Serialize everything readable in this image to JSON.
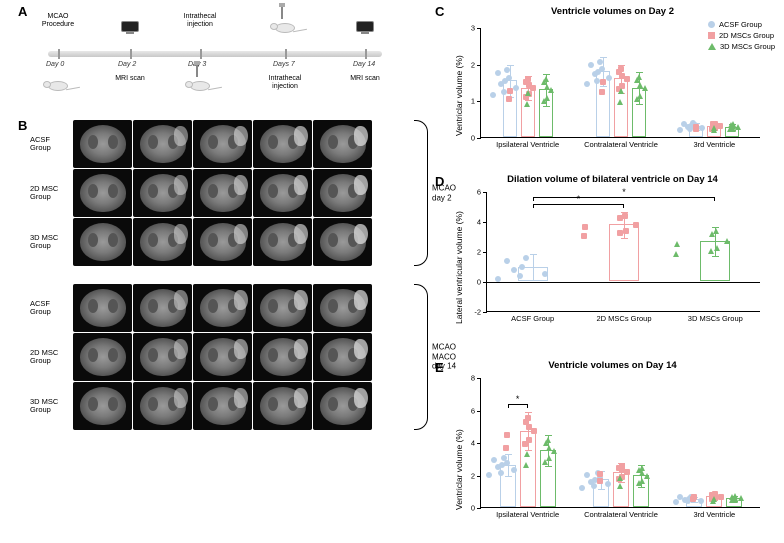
{
  "colors": {
    "acsf": "#b9d0e8",
    "msc2d": "#f1a0a2",
    "msc3d": "#6dbb6a",
    "axis": "#000000",
    "bg": "#ffffff"
  },
  "panelA": {
    "label": "A",
    "events": [
      {
        "day": "Day 0",
        "top": "MCAO\nProcedure",
        "bottom_icon": "rat",
        "x": 28
      },
      {
        "day": "Day 2",
        "top_icon": "monitor",
        "bottom": "MRI scan",
        "x": 100
      },
      {
        "day": "Day 3",
        "top": "Intrathecal\ninjection",
        "bottom_icon": "rat-syringe",
        "x": 170
      },
      {
        "day": "Days 7",
        "top_icon": "rat-syringe",
        "bottom": "Intrathecal\ninjection",
        "x": 255
      },
      {
        "day": "Day 14",
        "top_icon": "monitor",
        "bottom": "MRI scan",
        "x": 335
      }
    ]
  },
  "panelB": {
    "label": "B",
    "blocks": [
      {
        "bracket": "MCAO\nday 2",
        "rows": [
          "ACSF\nGroup",
          "2D MSC\nGroup",
          "3D MSC\nGroup"
        ]
      },
      {
        "bracket": "MCAO\nMACO\nday 14",
        "rows": [
          "ACSF\nGroup",
          "2D MSC\nGroup",
          "3D MSC\nGroup"
        ]
      }
    ],
    "slices_per_row": 5
  },
  "legend_groups": [
    "ACSF Group",
    "2D MSCs Group",
    "3D MSCs Group"
  ],
  "panelC": {
    "label": "C",
    "title": "Ventricle volumes on Day 2",
    "ylabel": "Ventriclar volume (%)",
    "ylim": [
      0,
      3
    ],
    "ytick_step": 1,
    "categories": [
      "Ipsilateral Ventricle",
      "Contralateral Ventricle",
      "3rd Ventricle"
    ],
    "bars": {
      "Ipsilateral Ventricle": {
        "acsf": {
          "m": 1.55,
          "e": 0.45
        },
        "2d": {
          "m": 1.35,
          "e": 0.35
        },
        "3d": {
          "m": 1.3,
          "e": 0.45
        }
      },
      "Contralateral Ventricle": {
        "acsf": {
          "m": 1.8,
          "e": 0.4
        },
        "2d": {
          "m": 1.6,
          "e": 0.4
        },
        "3d": {
          "m": 1.35,
          "e": 0.45
        }
      },
      "3rd Ventricle": {
        "acsf": {
          "m": 0.3,
          "e": 0.12
        },
        "2d": {
          "m": 0.3,
          "e": 0.1
        },
        "3d": {
          "m": 0.28,
          "e": 0.1
        }
      }
    },
    "n_points": 8
  },
  "panelD": {
    "label": "D",
    "title": "Dilation volume of bilateral ventricle on Day 14",
    "ylabel": "Lateral ventricular volume (%)",
    "ylim": [
      -2,
      6
    ],
    "ytick_step": 2,
    "categories": [
      "ACSF Group",
      "2D MSCs Group",
      "3D  MSCs Group"
    ],
    "bars": {
      "ACSF Group": {
        "color": "acsf",
        "m": 0.95,
        "e": 0.9
      },
      "2D MSCs Group": {
        "color": "2d",
        "m": 3.8,
        "e": 0.9
      },
      "3D  MSCs Group": {
        "color": "3d",
        "m": 2.7,
        "e": 1.0
      }
    },
    "sig": [
      {
        "from": 0,
        "to": 1,
        "y": 5.2,
        "label": "*"
      },
      {
        "from": 0,
        "to": 2,
        "y": 5.7,
        "label": "*"
      }
    ],
    "n_points": 7
  },
  "panelE": {
    "label": "E",
    "title": "Ventricle volumes on Day 14",
    "ylabel": "Ventriclar volume (%)",
    "ylim": [
      0,
      8
    ],
    "ytick_step": 2,
    "categories": [
      "Ipsilateral Ventricle",
      "Contralateral Ventricle",
      "3rd Ventricle"
    ],
    "bars": {
      "Ipsilateral Ventricle": {
        "acsf": {
          "m": 2.6,
          "e": 0.7
        },
        "2d": {
          "m": 4.7,
          "e": 1.2
        },
        "3d": {
          "m": 3.5,
          "e": 1.0
        }
      },
      "Contralateral Ventricle": {
        "acsf": {
          "m": 1.7,
          "e": 0.6
        },
        "2d": {
          "m": 2.15,
          "e": 0.6
        },
        "3d": {
          "m": 1.95,
          "e": 0.7
        }
      },
      "3rd Ventricle": {
        "acsf": {
          "m": 0.5,
          "e": 0.2
        },
        "2d": {
          "m": 0.65,
          "e": 0.2
        },
        "3d": {
          "m": 0.55,
          "e": 0.2
        }
      }
    },
    "sig": [
      {
        "cat": 0,
        "from": 0,
        "to": 1,
        "y": 6.4,
        "label": "*"
      }
    ],
    "n_points": 8
  },
  "fonts": {
    "title": 9.5,
    "axis": 8.5,
    "tick": 7.5,
    "panel_label": 13
  }
}
